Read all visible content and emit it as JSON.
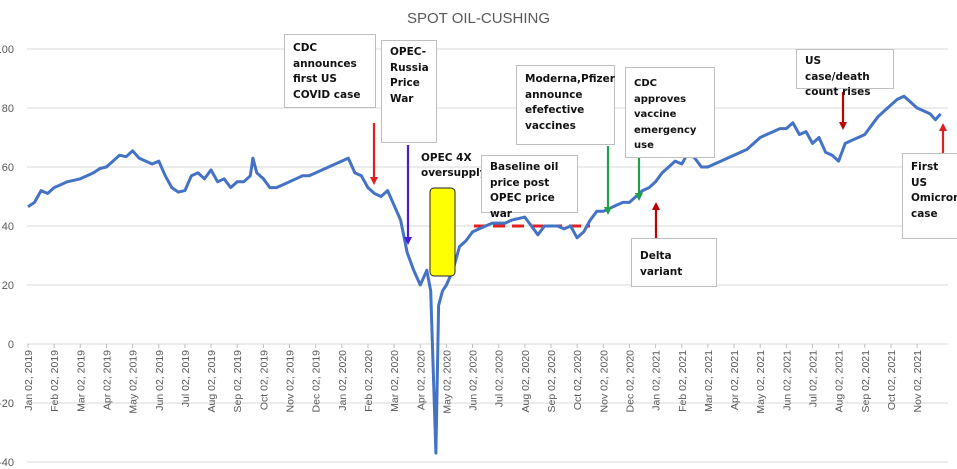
{
  "chart_data": {
    "type": "line",
    "title": "SPOT OIL-CUSHING",
    "xlabel": "",
    "ylabel": "",
    "ylim": [
      -40,
      100
    ],
    "yticks": [
      -40,
      -20,
      0,
      20,
      40,
      60,
      80,
      100
    ],
    "xtick_labels": [
      "Jan 02, 2019",
      "Feb 02, 2019",
      "Mar 02, 2019",
      "Apr 02, 2019",
      "May 02, 2019",
      "Jun 02, 2019",
      "Jul 02, 2019",
      "Aug 02, 2019",
      "Sep 02, 2019",
      "Oct 02, 2019",
      "Nov 02, 2019",
      "Dec 02, 2019",
      "Jan 02, 2020",
      "Feb 02, 2020",
      "Mar 02, 2020",
      "Apr 02, 2020",
      "May 02, 2020",
      "Jun 02, 2020",
      "Jul 02, 2020",
      "Aug 02, 2020",
      "Sep 02, 2020",
      "Oct 02, 2020",
      "Nov 02, 2020",
      "Dec 02, 2020",
      "Jan 02, 2021",
      "Feb 02, 2021",
      "Mar 02, 2021",
      "Apr 02, 2021",
      "May 02, 2021",
      "Jun 02, 2021",
      "Jul 02, 2021",
      "Aug 02, 2021",
      "Sep 02, 2021",
      "Oct 02, 2021",
      "Nov 02, 2021"
    ],
    "x_unit": "months since Jan 02, 2019",
    "grid": true,
    "series": [
      {
        "name": "Spot oil Cushing",
        "color": "#4472C4",
        "points": [
          [
            0,
            46.5
          ],
          [
            0.25,
            48
          ],
          [
            0.5,
            52
          ],
          [
            0.75,
            51
          ],
          [
            1,
            53
          ],
          [
            1.25,
            54
          ],
          [
            1.5,
            55
          ],
          [
            1.75,
            55.5
          ],
          [
            2,
            56
          ],
          [
            2.5,
            58
          ],
          [
            2.75,
            59.5
          ],
          [
            3,
            60
          ],
          [
            3.25,
            62
          ],
          [
            3.5,
            64
          ],
          [
            3.75,
            63.5
          ],
          [
            4,
            65.5
          ],
          [
            4.25,
            63
          ],
          [
            4.5,
            62
          ],
          [
            4.75,
            61
          ],
          [
            5,
            62
          ],
          [
            5.25,
            57
          ],
          [
            5.5,
            53
          ],
          [
            5.75,
            51.5
          ],
          [
            6,
            52
          ],
          [
            6.25,
            57
          ],
          [
            6.5,
            58
          ],
          [
            6.75,
            56
          ],
          [
            7,
            59
          ],
          [
            7.25,
            55
          ],
          [
            7.5,
            56
          ],
          [
            7.75,
            53
          ],
          [
            8,
            55
          ],
          [
            8.25,
            55
          ],
          [
            8.5,
            57
          ],
          [
            8.6,
            63
          ],
          [
            8.75,
            58
          ],
          [
            9,
            56
          ],
          [
            9.25,
            53
          ],
          [
            9.5,
            53
          ],
          [
            9.75,
            54
          ],
          [
            10,
            55
          ],
          [
            10.25,
            56
          ],
          [
            10.5,
            57
          ],
          [
            10.75,
            57
          ],
          [
            11,
            58
          ],
          [
            11.25,
            59
          ],
          [
            11.5,
            60
          ],
          [
            11.75,
            61
          ],
          [
            12,
            62
          ],
          [
            12.25,
            63
          ],
          [
            12.5,
            58
          ],
          [
            12.75,
            57
          ],
          [
            13,
            53
          ],
          [
            13.25,
            51
          ],
          [
            13.5,
            50
          ],
          [
            13.75,
            52
          ],
          [
            14,
            47
          ],
          [
            14.25,
            42
          ],
          [
            14.5,
            31
          ],
          [
            14.75,
            25
          ],
          [
            15,
            20
          ],
          [
            15.25,
            25
          ],
          [
            15.4,
            18
          ],
          [
            15.6,
            -37
          ],
          [
            15.7,
            13
          ],
          [
            15.85,
            18
          ],
          [
            16,
            20
          ],
          [
            16.25,
            25
          ],
          [
            16.5,
            33
          ],
          [
            16.75,
            35
          ],
          [
            17,
            38
          ],
          [
            17.25,
            39
          ],
          [
            17.5,
            40
          ],
          [
            17.75,
            41
          ],
          [
            18,
            41
          ],
          [
            18.25,
            41
          ],
          [
            18.5,
            42
          ],
          [
            18.75,
            42.5
          ],
          [
            19,
            43
          ],
          [
            19.25,
            40
          ],
          [
            19.5,
            37
          ],
          [
            19.75,
            40
          ],
          [
            20,
            40
          ],
          [
            20.25,
            40
          ],
          [
            20.5,
            39
          ],
          [
            20.75,
            40
          ],
          [
            21,
            36
          ],
          [
            21.25,
            38
          ],
          [
            21.5,
            42
          ],
          [
            21.75,
            45
          ],
          [
            22,
            45
          ],
          [
            22.25,
            46
          ],
          [
            22.5,
            47
          ],
          [
            22.75,
            48
          ],
          [
            23,
            48
          ],
          [
            23.25,
            50
          ],
          [
            23.5,
            52
          ],
          [
            23.75,
            53
          ],
          [
            24,
            55
          ],
          [
            24.25,
            58
          ],
          [
            24.5,
            60
          ],
          [
            24.75,
            62
          ],
          [
            25,
            61
          ],
          [
            25.25,
            65
          ],
          [
            25.5,
            63
          ],
          [
            25.75,
            60
          ],
          [
            26,
            60
          ],
          [
            26.25,
            61
          ],
          [
            26.5,
            62
          ],
          [
            26.75,
            63
          ],
          [
            27,
            64
          ],
          [
            27.25,
            65
          ],
          [
            27.5,
            66
          ],
          [
            27.75,
            68
          ],
          [
            28,
            70
          ],
          [
            28.25,
            71
          ],
          [
            28.5,
            72
          ],
          [
            28.75,
            73
          ],
          [
            29,
            73
          ],
          [
            29.25,
            75
          ],
          [
            29.5,
            71
          ],
          [
            29.75,
            72
          ],
          [
            30,
            68
          ],
          [
            30.25,
            70
          ],
          [
            30.5,
            65
          ],
          [
            30.75,
            64
          ],
          [
            31,
            62
          ],
          [
            31.25,
            68
          ],
          [
            31.5,
            69
          ],
          [
            31.75,
            70
          ],
          [
            32,
            71
          ],
          [
            32.25,
            74
          ],
          [
            32.5,
            77
          ],
          [
            32.75,
            79
          ],
          [
            33,
            81
          ],
          [
            33.25,
            83
          ],
          [
            33.5,
            84
          ],
          [
            33.75,
            82
          ],
          [
            34,
            80
          ],
          [
            34.25,
            79
          ],
          [
            34.5,
            78
          ],
          [
            34.7,
            76
          ],
          [
            34.9,
            78
          ]
        ]
      }
    ],
    "reference_line": {
      "label": "Baseline oil price post OPEC price war",
      "value": 40,
      "color": "#E02020",
      "style": "dashed"
    },
    "annotations": [
      {
        "id": "cdc-first-case",
        "text": "CDC announces first US COVID case",
        "arrow_color": "#E02020"
      },
      {
        "id": "opec-russia",
        "text": "OPEC-Russia Price War",
        "arrow_color": "#4B1BD8"
      },
      {
        "id": "opec-oversupply",
        "text": "OPEC 4X oversupply",
        "highlight_color": "#FFFF00"
      },
      {
        "id": "baseline",
        "text": "Baseline oil price post OPEC price war"
      },
      {
        "id": "moderna-pfizer",
        "text": "Moderna,Pfizer announce efefective vaccines",
        "arrow_color": "#1FA04A"
      },
      {
        "id": "cdc-vaccine",
        "text": "CDC approves vaccine emergency use",
        "arrow_color": "#1FA04A"
      },
      {
        "id": "delta",
        "text": "Delta variant",
        "arrow_color": "#C00000"
      },
      {
        "id": "us-case-death",
        "text": "US case/death count rises",
        "arrow_color": "#C00000"
      },
      {
        "id": "omicron",
        "text": "First US Omicron case",
        "arrow_color": "#E02020"
      }
    ]
  }
}
